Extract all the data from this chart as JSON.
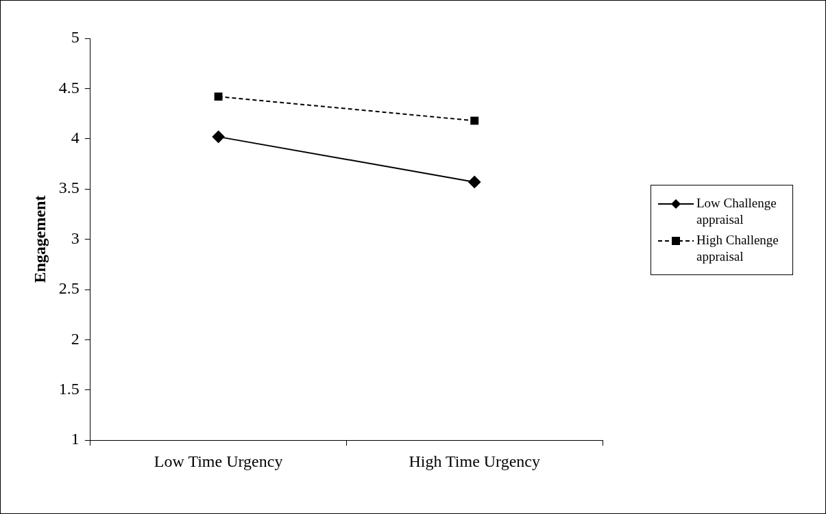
{
  "chart_data": {
    "type": "line",
    "ylabel": "Engagement",
    "categories": [
      "Low Time Urgency",
      "High Time Urgency"
    ],
    "series": [
      {
        "name": "Low Challenge appraisal",
        "color": "#000000",
        "values": [
          4.02,
          3.57
        ],
        "marker": "diamond",
        "line_style": "solid"
      },
      {
        "name": "High Challenge appraisal",
        "color": "#000000",
        "values": [
          4.42,
          4.18
        ],
        "marker": "square",
        "line_style": "dashed"
      }
    ],
    "ylim": [
      1,
      5
    ],
    "yticks": [
      1,
      1.5,
      2,
      2.5,
      3,
      3.5,
      4,
      4.5,
      5
    ],
    "grid": false,
    "legend": "right"
  }
}
